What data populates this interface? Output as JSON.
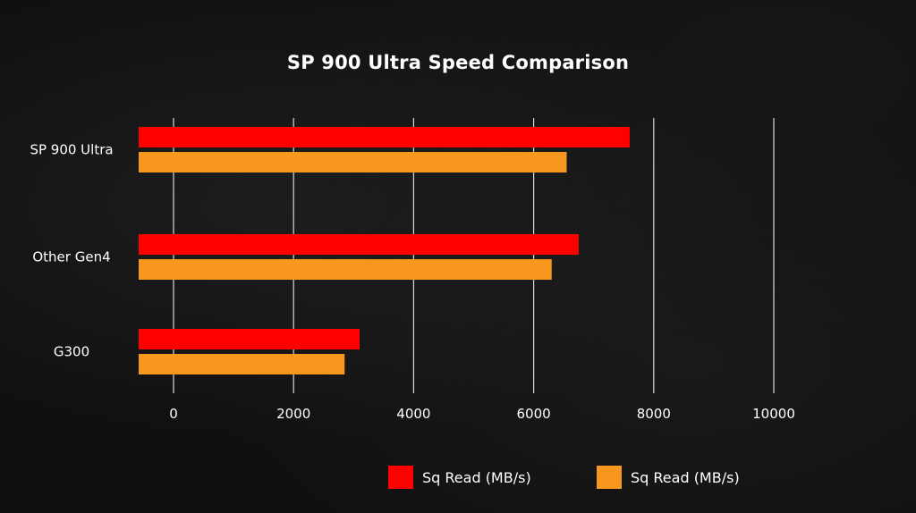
{
  "chart_data": {
    "type": "bar",
    "orientation": "horizontal",
    "title": "SP 900 Ultra Speed Comparison",
    "xlabel": "",
    "ylabel": "",
    "categories": [
      "SP 900 Ultra",
      "Other Gen4",
      "G300"
    ],
    "series": [
      {
        "name": "Sq Read (MB/s)",
        "color": "#ff0000",
        "values": [
          7600,
          6750,
          3100
        ]
      },
      {
        "name": "Sq Read (MB/s)",
        "color": "#f7971e",
        "values": [
          6550,
          6300,
          2850
        ]
      }
    ],
    "xlim": [
      0,
      10000
    ],
    "xticks": [
      "0",
      "2000",
      "4000",
      "6000",
      "8000",
      "10000"
    ],
    "grid": true,
    "legend_position": "bottom"
  }
}
